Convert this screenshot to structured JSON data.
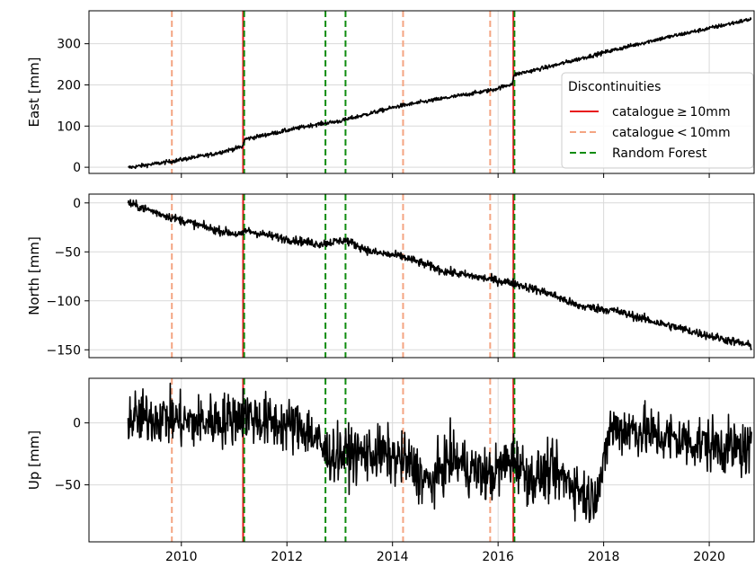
{
  "chart_data": {
    "type": "line",
    "x_axis": {
      "ticks": [
        2010,
        2012,
        2014,
        2016,
        2018,
        2020
      ],
      "tick_labels": [
        "2010",
        "2012",
        "2014",
        "2016",
        "2018",
        "2020"
      ],
      "xlim": [
        2008.25,
        2020.85
      ]
    },
    "grid": true,
    "legend": {
      "title": "Discontinuities",
      "placement": "upper-right of top panel",
      "entries": [
        {
          "label": "catalogue ≥ 10mm",
          "color": "#e8161b",
          "style": "solid"
        },
        {
          "label": "catalogue < 10mm",
          "color": "#f4a582",
          "style": "dashed"
        },
        {
          "label": "Random Forest",
          "color": "#0f8c0f",
          "style": "dashed"
        }
      ]
    },
    "discontinuities": {
      "catalogue_ge_10mm": [
        2011.17,
        2016.29
      ],
      "catalogue_lt_10mm": [
        2009.82,
        2014.2,
        2015.85
      ],
      "random_forest": [
        2011.19,
        2012.73,
        2013.11,
        2016.31
      ]
    },
    "series_style": {
      "color": "#000000"
    },
    "panels": [
      {
        "ylabel": "East [mm]",
        "ylim": [
          -15,
          380
        ],
        "yticks": [
          0,
          100,
          200,
          300
        ],
        "noise": 2.5,
        "knots": [
          [
            2008.99,
            -1
          ],
          [
            2009.8,
            14
          ],
          [
            2010.6,
            32
          ],
          [
            2011.16,
            50
          ],
          [
            2011.2,
            68
          ],
          [
            2012.5,
            103
          ],
          [
            2013.0,
            112
          ],
          [
            2014.1,
            148
          ],
          [
            2015.0,
            168
          ],
          [
            2015.9,
            188
          ],
          [
            2016.27,
            203
          ],
          [
            2016.31,
            225
          ],
          [
            2017.0,
            245
          ],
          [
            2017.5,
            262
          ],
          [
            2018.2,
            285
          ],
          [
            2019.0,
            310
          ],
          [
            2019.8,
            332
          ],
          [
            2020.8,
            360
          ]
        ]
      },
      {
        "ylabel": "North [mm]",
        "ylim": [
          -158,
          9
        ],
        "yticks": [
          0,
          -50,
          -100,
          -150
        ],
        "noise": 2.2,
        "knots": [
          [
            2008.99,
            0
          ],
          [
            2009.7,
            -13
          ],
          [
            2010.6,
            -27
          ],
          [
            2011.16,
            -33
          ],
          [
            2011.2,
            -28
          ],
          [
            2011.9,
            -36
          ],
          [
            2012.6,
            -42
          ],
          [
            2013.1,
            -38
          ],
          [
            2013.6,
            -50
          ],
          [
            2014.2,
            -55
          ],
          [
            2015.0,
            -70
          ],
          [
            2015.85,
            -78
          ],
          [
            2016.3,
            -82
          ],
          [
            2017.0,
            -93
          ],
          [
            2017.5,
            -105
          ],
          [
            2018.2,
            -110
          ],
          [
            2019.0,
            -122
          ],
          [
            2019.8,
            -133
          ],
          [
            2020.8,
            -146
          ]
        ]
      },
      {
        "ylabel": "Up [mm]",
        "ylim": [
          -96,
          36
        ],
        "yticks": [
          0,
          -50
        ],
        "noise": 11,
        "knots": [
          [
            2008.99,
            3
          ],
          [
            2009.6,
            5
          ],
          [
            2010.2,
            0
          ],
          [
            2010.9,
            3
          ],
          [
            2011.16,
            8
          ],
          [
            2011.5,
            2
          ],
          [
            2012.4,
            -5
          ],
          [
            2012.75,
            -25
          ],
          [
            2013.2,
            -25
          ],
          [
            2013.8,
            -25
          ],
          [
            2014.3,
            -32
          ],
          [
            2014.7,
            -50
          ],
          [
            2015.1,
            -28
          ],
          [
            2015.5,
            -38
          ],
          [
            2015.85,
            -43
          ],
          [
            2016.3,
            -28
          ],
          [
            2016.6,
            -45
          ],
          [
            2017.0,
            -40
          ],
          [
            2017.4,
            -48
          ],
          [
            2017.75,
            -62
          ],
          [
            2018.0,
            -40
          ],
          [
            2018.1,
            -5
          ],
          [
            2018.6,
            -5
          ],
          [
            2019.0,
            -10
          ],
          [
            2019.6,
            -15
          ],
          [
            2020.1,
            -18
          ],
          [
            2020.8,
            -23
          ]
        ]
      }
    ]
  }
}
